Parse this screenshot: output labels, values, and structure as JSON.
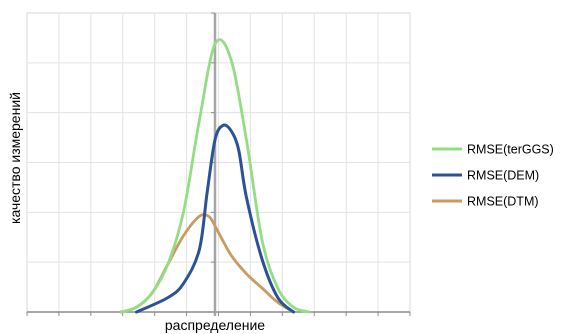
{
  "chart_data": {
    "type": "line",
    "title": "",
    "xlabel": "распределение",
    "ylabel": "качество измерений",
    "grid": true,
    "legend_position": "right",
    "xlim": [
      -5,
      5
    ],
    "ylim": [
      0,
      6
    ],
    "series": [
      {
        "name": "RMSE(terGGS)",
        "color": "#93dd84",
        "x": [
          -3.0,
          -2.5,
          -2.0,
          -1.5,
          -1.0,
          -0.5,
          0.0,
          0.5,
          1.0,
          1.5,
          2.0,
          2.5,
          3.0
        ],
        "y": [
          0.0,
          0.1,
          0.4,
          1.0,
          2.1,
          4.0,
          5.6,
          5.3,
          3.6,
          1.5,
          0.5,
          0.1,
          0.0
        ]
      },
      {
        "name": "RMSE(DEM)",
        "color": "#2a5297",
        "x": [
          -2.5,
          -1.5,
          -1.0,
          -0.5,
          -0.25,
          0.0,
          0.25,
          0.5,
          0.75,
          1.0,
          1.5,
          2.0,
          2.5
        ],
        "y": [
          0.0,
          0.3,
          0.6,
          1.3,
          2.5,
          3.6,
          3.9,
          3.8,
          3.4,
          2.4,
          1.1,
          0.3,
          0.0
        ]
      },
      {
        "name": "RMSE(DTM)",
        "color": "#c89b62",
        "x": [
          -3.0,
          -2.5,
          -2.0,
          -1.5,
          -1.0,
          -0.5,
          -0.2,
          0.0,
          0.5,
          1.0,
          1.5,
          2.0,
          2.5
        ],
        "y": [
          0.0,
          0.1,
          0.4,
          1.0,
          1.6,
          2.0,
          2.0,
          1.8,
          1.2,
          0.8,
          0.5,
          0.2,
          0.0
        ]
      }
    ]
  }
}
